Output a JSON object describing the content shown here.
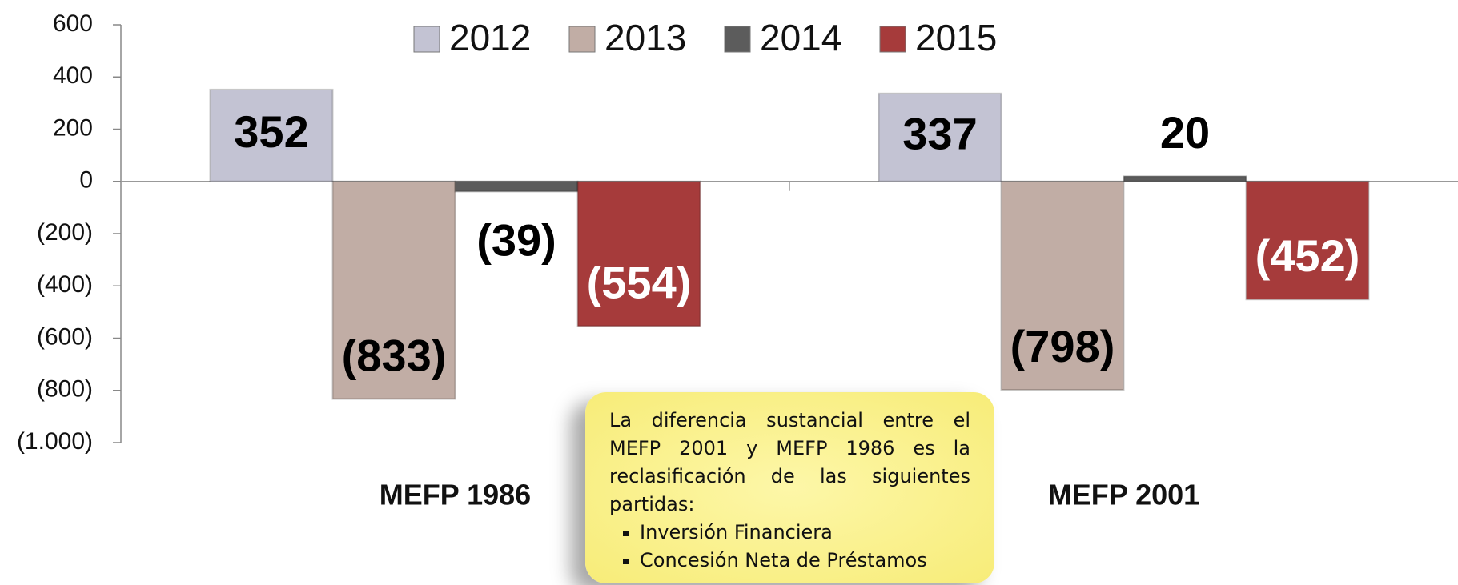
{
  "chart_data": {
    "type": "bar",
    "categories": [
      "MEFP 1986",
      "MEFP 2001"
    ],
    "series": [
      {
        "name": "2012",
        "color": "#c3c3d3",
        "label_color": "#000000",
        "values": [
          352,
          337
        ]
      },
      {
        "name": "2013",
        "color": "#c1ada5",
        "label_color": "#000000",
        "values": [
          -833,
          -798
        ],
        "value_labels": [
          "(833)",
          "(798)"
        ]
      },
      {
        "name": "2014",
        "color": "#5c5c5c",
        "label_color": "#000000",
        "values": [
          -39,
          20
        ],
        "value_labels": [
          "(39)",
          "20"
        ]
      },
      {
        "name": "2015",
        "color": "#a63b3b",
        "label_color": "#ffffff",
        "values": [
          -554,
          -452
        ],
        "value_labels": [
          "(554)",
          "(452)"
        ]
      }
    ],
    "ylim": [
      -1000,
      600
    ],
    "yticks": [
      {
        "value": -1000,
        "label": "(1.000)"
      },
      {
        "value": -800,
        "label": "(800)"
      },
      {
        "value": -600,
        "label": "(600)"
      },
      {
        "value": -400,
        "label": "(400)"
      },
      {
        "value": -200,
        "label": "(200)"
      },
      0,
      200,
      400,
      600
    ],
    "legend": "top",
    "annotation": {
      "text": "La diferencia sustancial entre el MEFP 2001 y MEFP 1986 es la reclasificación de las siguientes partidas:",
      "items": [
        "Inversión Financiera",
        "Concesión Neta de Préstamos"
      ]
    }
  }
}
